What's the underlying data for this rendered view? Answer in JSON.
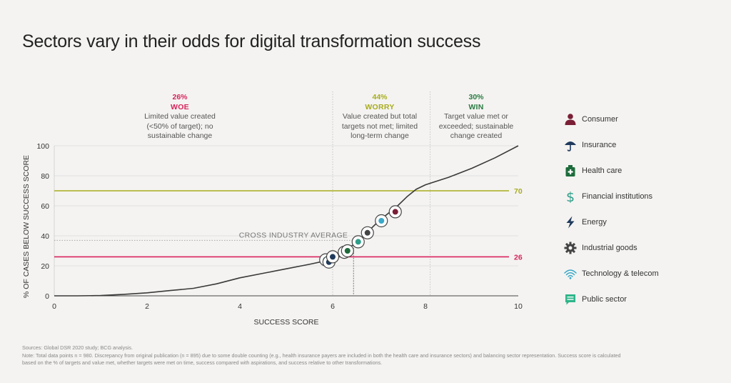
{
  "title": "Sectors vary in their odds for digital transformation success",
  "zones": {
    "woe": {
      "pct": "26%",
      "name": "WOE",
      "desc": [
        "Limited value created",
        "(<50% of target); no",
        "sustainable change"
      ]
    },
    "worry": {
      "pct": "44%",
      "name": "WORRY",
      "desc": [
        "Value created but total",
        "targets not met; limited",
        "long-term change"
      ]
    },
    "win": {
      "pct": "30%",
      "name": "WIN",
      "desc": [
        "Target value met or",
        "exceeded; sustainable",
        "change created"
      ]
    }
  },
  "legend": [
    {
      "label": "Consumer",
      "icon": "person-icon",
      "color": "#7a1f35"
    },
    {
      "label": "Insurance",
      "icon": "umbrella-icon",
      "color": "#1f3a5c"
    },
    {
      "label": "Health care",
      "icon": "medical-kit-icon",
      "color": "#1e6b3c"
    },
    {
      "label": "Financial institutions",
      "icon": "dollar-icon",
      "color": "#2f9e8a"
    },
    {
      "label": "Energy",
      "icon": "lightning-icon",
      "color": "#1f3a5c"
    },
    {
      "label": "Industrial goods",
      "icon": "gear-icon",
      "color": "#444444"
    },
    {
      "label": "Technology & telecom",
      "icon": "wifi-icon",
      "color": "#3aa8c8"
    },
    {
      "label": "Public sector",
      "icon": "chat-icon",
      "color": "#2fb58a"
    }
  ],
  "footnote": {
    "line1": "Sources: Global DSR 2020 study; BCG analysis.",
    "line2": "Note: Total data points n = 980. Discrepancy from original publication (n = 895) due to some double counting (e.g., health insurance payers are included in both the health care and insurance sectors) and balancing sector representation. Success score is calculated",
    "line3": "based on the % of targets and value met, whether targets were met on time, success compared with aspirations, and success relative to other transformations."
  },
  "colors": {
    "woe": "#d8235c",
    "worry": "#a8ac1e",
    "win": "#2a7b43",
    "curve": "#3a3a3a",
    "grid": "#dddddd"
  },
  "chart_data": {
    "type": "line",
    "xlabel": "SUCCESS SCORE",
    "ylabel": "% OF CASES BELOW SUCCESS SCORE",
    "xlim": [
      0,
      10
    ],
    "ylim": [
      0,
      100
    ],
    "xticks": [
      0,
      2,
      4,
      6,
      8,
      10
    ],
    "yticks": [
      0,
      20,
      40,
      60,
      80,
      100
    ],
    "curve": {
      "x": [
        0,
        0.5,
        1,
        1.5,
        2,
        2.5,
        3,
        3.5,
        4,
        4.5,
        5,
        5.5,
        5.8,
        6,
        6.2,
        6.4,
        6.6,
        6.8,
        7,
        7.2,
        7.4,
        7.6,
        7.8,
        8,
        8.5,
        9,
        9.5,
        10
      ],
      "y": [
        0,
        0,
        0.2,
        1,
        2,
        3.5,
        5,
        8,
        12,
        15,
        18,
        21,
        23,
        26,
        29,
        33,
        38,
        44,
        50,
        55,
        60,
        66,
        71,
        74,
        79,
        85,
        92,
        100
      ]
    },
    "reference_lines": [
      {
        "y": 70,
        "label": "70",
        "color": "#a8ac1e"
      },
      {
        "y": 26,
        "label": "26",
        "color": "#d8235c"
      }
    ],
    "zone_dividers": [
      6,
      8.1
    ],
    "cross_industry_average": {
      "label": "CROSS INDUSTRY AVERAGE",
      "x": 6.45,
      "y": 37
    },
    "sector_points": [
      {
        "sector": "Public sector",
        "x": 5.85,
        "y": 24
      },
      {
        "sector": "Insurance",
        "x": 5.92,
        "y": 22.5
      },
      {
        "sector": "Energy",
        "x": 6.0,
        "y": 26
      },
      {
        "sector": "Financial institutions",
        "x": 6.25,
        "y": 29
      },
      {
        "sector": "Health care",
        "x": 6.32,
        "y": 30
      },
      {
        "sector": "Financial institutions",
        "x": 6.55,
        "y": 36
      },
      {
        "sector": "Industrial goods",
        "x": 6.75,
        "y": 42
      },
      {
        "sector": "Technology & telecom",
        "x": 7.05,
        "y": 50
      },
      {
        "sector": "Consumer",
        "x": 7.35,
        "y": 56
      }
    ]
  }
}
